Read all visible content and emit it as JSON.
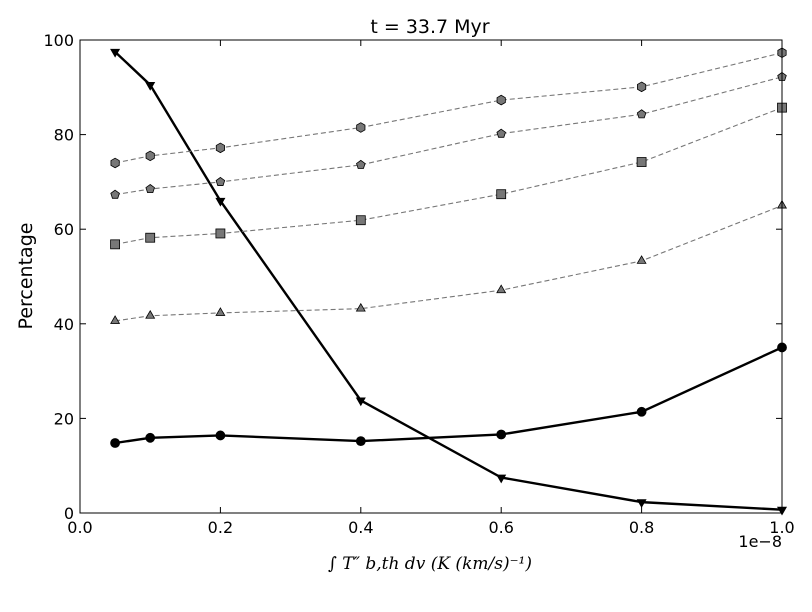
{
  "chart_data": {
    "type": "line",
    "title": "t = 33.7 Myr",
    "ylabel": "Percentage",
    "xlabel": "∫ T″ b,th dv (K (km/s)⁻¹)",
    "x_offset_label": "1e−8",
    "xlim": [
      0.0,
      1.0
    ],
    "ylim": [
      0,
      100
    ],
    "x_ticks": [
      "0.0",
      "0.2",
      "0.4",
      "0.6",
      "0.8",
      "1.0"
    ],
    "y_ticks": [
      "0",
      "20",
      "40",
      "60",
      "80",
      "100"
    ],
    "x": [
      0.05,
      0.1,
      0.2,
      0.4,
      0.6,
      0.8,
      1.0
    ],
    "grid": false,
    "legend": "none",
    "series": [
      {
        "marker": "triangle-down",
        "style": "solid",
        "color": "#000000",
        "values": [
          97.5,
          90.5,
          66.0,
          23.8,
          7.5,
          2.3,
          0.7
        ]
      },
      {
        "marker": "circle",
        "style": "solid",
        "color": "#000000",
        "values": [
          14.8,
          15.9,
          16.4,
          15.2,
          16.6,
          21.4,
          35.0
        ]
      },
      {
        "marker": "hexagon",
        "style": "dashed",
        "color": "#777777",
        "values": [
          74.0,
          75.5,
          77.2,
          81.5,
          87.3,
          90.1,
          97.3
        ]
      },
      {
        "marker": "pentagon",
        "style": "dashed",
        "color": "#777777",
        "values": [
          67.3,
          68.5,
          70.0,
          73.6,
          80.2,
          84.3,
          92.2
        ]
      },
      {
        "marker": "square",
        "style": "dashed",
        "color": "#777777",
        "values": [
          56.8,
          58.2,
          59.1,
          61.9,
          67.4,
          74.2,
          85.7
        ]
      },
      {
        "marker": "triangle-up",
        "style": "dashed",
        "color": "#777777",
        "values": [
          40.6,
          41.7,
          42.3,
          43.2,
          47.1,
          53.3,
          65.0
        ]
      }
    ]
  }
}
